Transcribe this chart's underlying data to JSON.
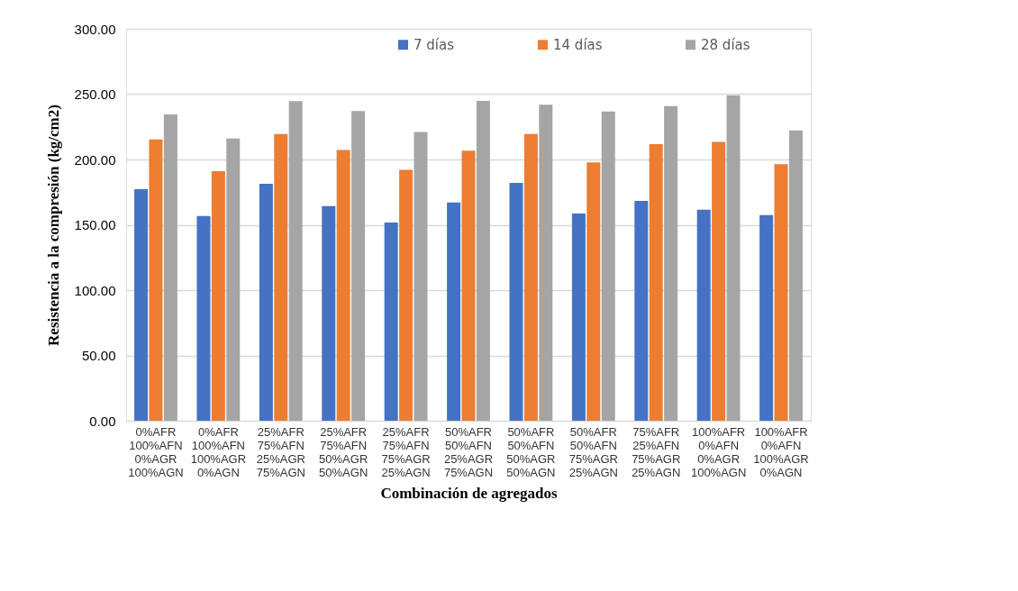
{
  "chart_data": {
    "type": "bar",
    "xlabel": "Combinación de agregados",
    "ylabel": "Resistencia a la compresión (kg/cm2)",
    "categories": [
      "0%AFR\n100%AFN\n0%AGR\n100%AGN",
      "0%AFR\n100%AFN\n100%AGR\n0%AGN",
      "25%AFR\n75%AFN\n25%AGR\n75%AGN",
      "25%AFR\n75%AFN\n50%AGR\n50%AGN",
      "25%AFR\n75%AFN\n75%AGR\n25%AGN",
      "50%AFR\n50%AFN\n25%AGR\n75%AGN",
      "50%AFR\n50%AFN\n50%AGR\n50%AGN",
      "50%AFR\n50%AFN\n75%AGR\n25%AGN",
      "75%AFR\n25%AFN\n75%AGR\n25%AGN",
      "100%AFR\n0%AFN\n0%AGR\n100%AGN",
      "100%AFR\n0%AFN\n100%AGR\n0%AGN"
    ],
    "series": [
      {
        "name": "7 días",
        "color": "#4472c4",
        "values": [
          177.2,
          156.8,
          181.3,
          164.3,
          151.7,
          167.0,
          182.1,
          158.7,
          168.3,
          161.5,
          157.4
        ]
      },
      {
        "name": "14 días",
        "color": "#ed7d31",
        "values": [
          215.3,
          191.1,
          219.4,
          207.2,
          192.1,
          206.8,
          219.4,
          197.7,
          211.7,
          213.4,
          196.4
        ]
      },
      {
        "name": "28 días",
        "color": "#a5a5a5",
        "values": [
          234.5,
          216.0,
          244.7,
          237.0,
          221.1,
          244.9,
          241.9,
          236.8,
          240.9,
          249.1,
          222.3
        ]
      }
    ],
    "ylim": [
      0,
      300
    ],
    "yticks": [
      {
        "value": 0,
        "label": "0.00"
      },
      {
        "value": 50,
        "label": "50.00"
      },
      {
        "value": 100,
        "label": "100.00"
      },
      {
        "value": 150,
        "label": "150.00"
      },
      {
        "value": 200,
        "label": "200.00"
      },
      {
        "value": 250,
        "label": "250.00"
      },
      {
        "value": 300,
        "label": "300.00"
      }
    ],
    "grid": "y",
    "legend": "top"
  }
}
